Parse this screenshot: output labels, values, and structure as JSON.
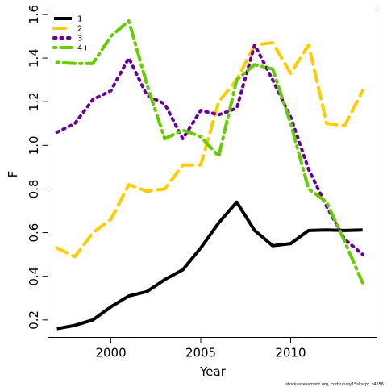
{
  "chart_data": {
    "type": "line",
    "xlabel": "Year",
    "ylabel": "F",
    "xlim": [
      1996.5,
      2014.8
    ],
    "ylim": [
      0.12,
      1.62
    ],
    "x_ticks": [
      2000,
      2005,
      2010
    ],
    "y_ticks": [
      0.2,
      0.4,
      0.6,
      0.8,
      1.0,
      1.2,
      1.4,
      1.6
    ],
    "x": [
      1997,
      1998,
      1999,
      2000,
      2001,
      2002,
      2003,
      2004,
      2005,
      2006,
      2007,
      2008,
      2009,
      2010,
      2011,
      2012,
      2013,
      2014
    ],
    "legend_position": "top-left",
    "series": [
      {
        "name": "1",
        "color": "#000000",
        "dash": "solid",
        "values": [
          0.16,
          0.175,
          0.2,
          0.26,
          0.31,
          0.33,
          0.385,
          0.43,
          0.53,
          0.645,
          0.74,
          0.61,
          0.54,
          0.55,
          0.61,
          0.612,
          0.61,
          0.612
        ]
      },
      {
        "name": "2",
        "color": "#FFCC00",
        "dash": "dashed",
        "values": [
          0.53,
          0.49,
          0.6,
          0.66,
          0.82,
          0.79,
          0.8,
          0.91,
          0.91,
          1.2,
          1.3,
          1.46,
          1.47,
          1.33,
          1.46,
          1.1,
          1.09,
          1.25
        ]
      },
      {
        "name": "3",
        "color": "#660099",
        "dash": "dotted",
        "values": [
          1.06,
          1.1,
          1.21,
          1.25,
          1.4,
          1.23,
          1.19,
          1.03,
          1.16,
          1.14,
          1.17,
          1.46,
          1.3,
          1.13,
          0.89,
          0.72,
          0.57,
          0.5
        ]
      },
      {
        "name": "4+",
        "color": "#66CC00",
        "dash": "dotdash",
        "values": [
          1.38,
          1.375,
          1.375,
          1.5,
          1.57,
          1.28,
          1.03,
          1.07,
          1.04,
          0.95,
          1.3,
          1.37,
          1.35,
          1.1,
          0.8,
          0.74,
          0.56,
          0.37
        ]
      }
    ]
  },
  "footnote": "stockassessment.org, codsurvey15skarpt, r4656"
}
